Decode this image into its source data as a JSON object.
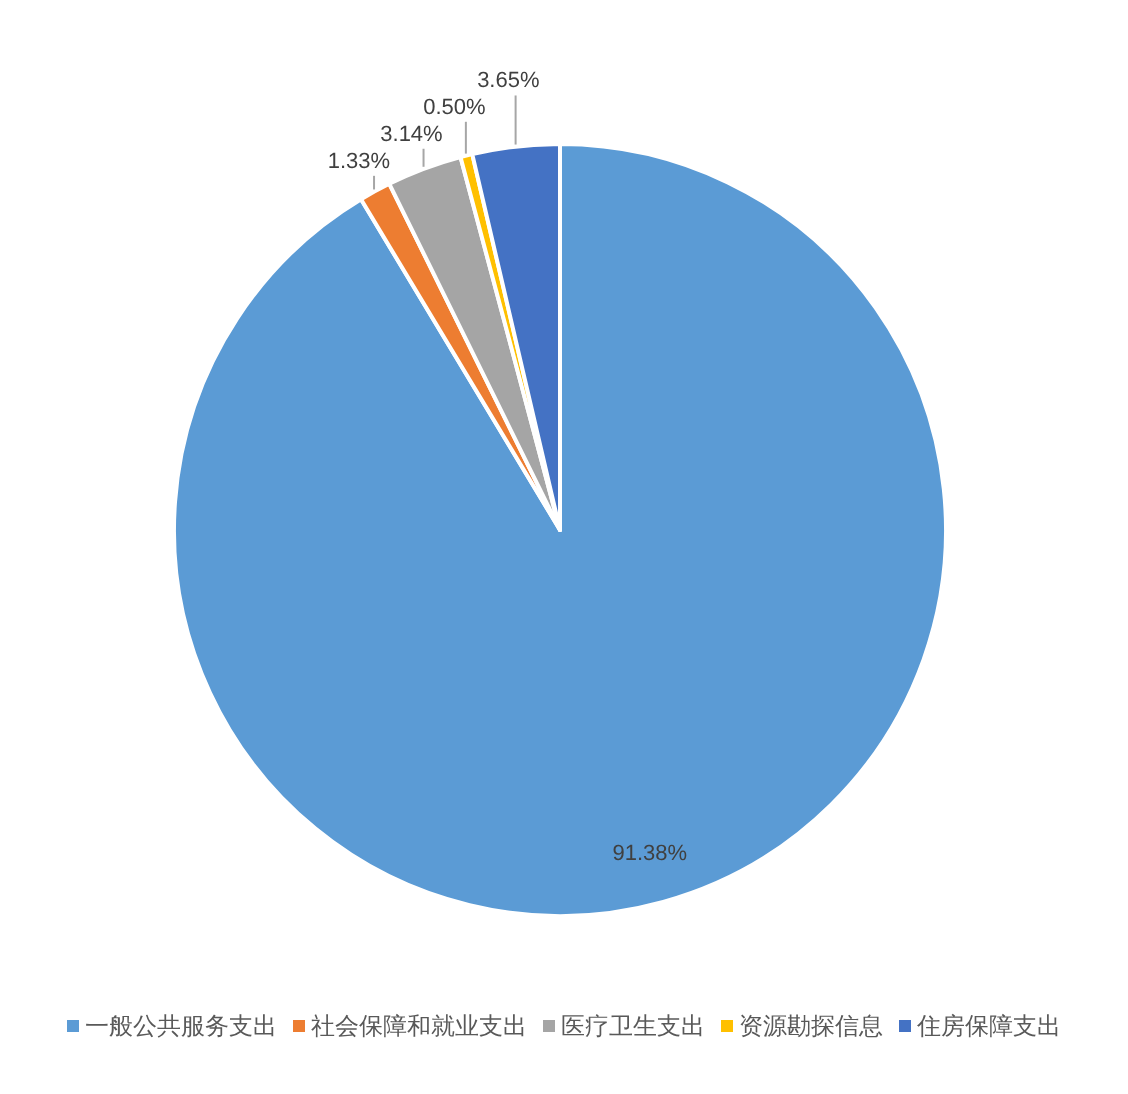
{
  "chart_data": {
    "type": "pie",
    "categories": [
      "一般公共服务支出",
      "社会保障和就业支出",
      "医疗卫生支出",
      "资源勘探信息",
      "住房保障支出"
    ],
    "values": [
      91.38,
      1.33,
      3.14,
      0.5,
      3.65
    ],
    "value_labels": [
      "91.38%",
      "1.33%",
      "3.14%",
      "0.50%",
      "3.65%"
    ],
    "colors": [
      "#5b9bd5",
      "#ed7d31",
      "#a5a5a5",
      "#ffc000",
      "#4472c4"
    ],
    "legend": "bottom"
  }
}
